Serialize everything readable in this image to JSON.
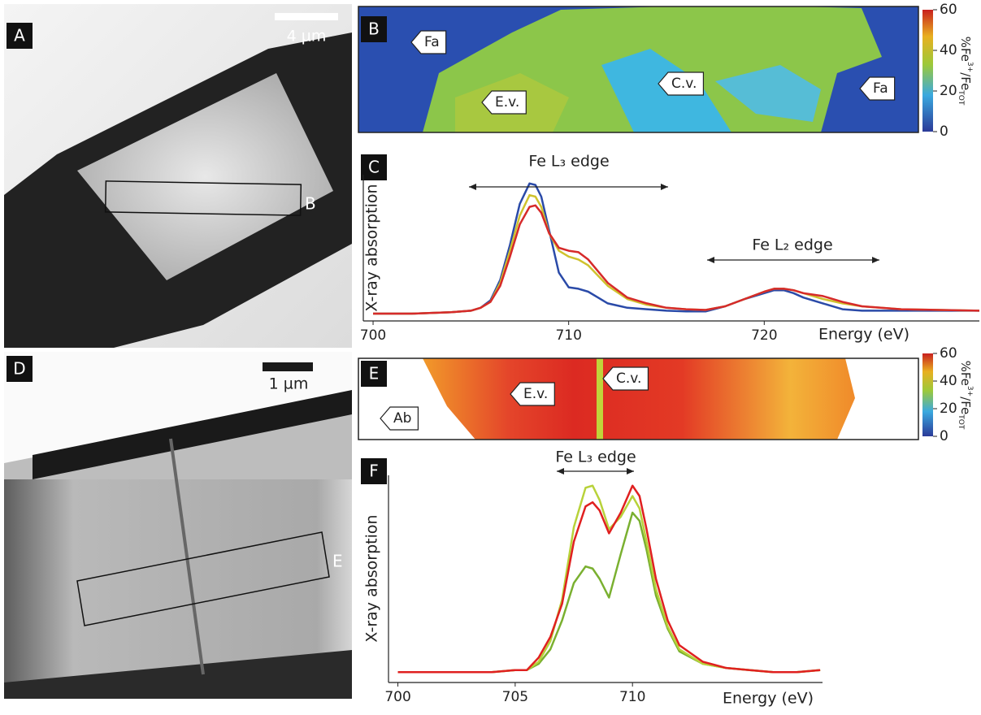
{
  "panels": {
    "labels": [
      "A",
      "B",
      "C",
      "D",
      "E",
      "F"
    ],
    "scale_bars": [
      "4 µm",
      "1 µm"
    ],
    "box_labels": [
      "B",
      "E"
    ],
    "map_b_regions": [
      "Fa",
      "E.v.",
      "C.v.",
      "Fa"
    ],
    "map_e_regions": [
      "E.v.",
      "C.v.",
      "Ab"
    ],
    "colorbar": {
      "range": [
        0,
        60
      ],
      "ticks": [
        0,
        20,
        40,
        60
      ],
      "label": {
        "main": "%Fe",
        "sup": "3+",
        "mid": "/Fe",
        "sub": "TOT"
      }
    }
  },
  "chart_data": [
    {
      "type": "line",
      "x_label": "Energy (eV)",
      "y_label": "X-ray absorption",
      "annotations": [
        "Fe L₃ edge",
        "Fe L₂ edge"
      ],
      "xlim": [
        699.5,
        731
      ],
      "xticks": [
        700,
        710,
        720
      ],
      "ylim": [
        0,
        1
      ],
      "x": [
        700,
        702,
        704,
        705,
        705.5,
        706,
        706.5,
        707,
        707.5,
        708,
        708.3,
        708.6,
        709,
        709.5,
        710,
        710.5,
        711,
        711.5,
        712,
        713,
        714,
        715,
        716,
        717,
        718,
        719,
        720,
        720.5,
        721,
        721.5,
        722,
        722.5,
        723,
        724,
        725,
        727,
        729,
        731
      ],
      "series": [
        {
          "color": "#2a4aa8",
          "values": [
            0.05,
            0.05,
            0.06,
            0.07,
            0.09,
            0.14,
            0.28,
            0.52,
            0.8,
            0.94,
            0.93,
            0.85,
            0.62,
            0.33,
            0.23,
            0.22,
            0.2,
            0.16,
            0.12,
            0.09,
            0.08,
            0.07,
            0.065,
            0.065,
            0.1,
            0.15,
            0.19,
            0.21,
            0.21,
            0.19,
            0.16,
            0.14,
            0.12,
            0.08,
            0.07,
            0.07,
            0.07,
            0.07
          ]
        },
        {
          "color": "#cfc22e",
          "values": [
            0.05,
            0.05,
            0.06,
            0.07,
            0.09,
            0.13,
            0.26,
            0.48,
            0.72,
            0.86,
            0.85,
            0.78,
            0.6,
            0.48,
            0.44,
            0.42,
            0.38,
            0.31,
            0.24,
            0.15,
            0.11,
            0.09,
            0.08,
            0.075,
            0.1,
            0.15,
            0.2,
            0.22,
            0.22,
            0.21,
            0.19,
            0.17,
            0.15,
            0.12,
            0.1,
            0.08,
            0.075,
            0.07
          ]
        },
        {
          "color": "#d62a2a",
          "values": [
            0.05,
            0.05,
            0.06,
            0.07,
            0.09,
            0.13,
            0.24,
            0.44,
            0.66,
            0.78,
            0.79,
            0.74,
            0.6,
            0.5,
            0.48,
            0.47,
            0.42,
            0.34,
            0.26,
            0.16,
            0.12,
            0.09,
            0.08,
            0.075,
            0.1,
            0.15,
            0.2,
            0.22,
            0.22,
            0.21,
            0.19,
            0.18,
            0.17,
            0.13,
            0.1,
            0.08,
            0.075,
            0.07
          ]
        }
      ]
    },
    {
      "type": "line",
      "x_label": "Energy (eV)",
      "y_label": "X-ray absorption",
      "annotations": [
        "Fe L₃ edge"
      ],
      "xlim": [
        699.6,
        718.1
      ],
      "xticks": [
        700,
        705,
        710
      ],
      "ylim": [
        0,
        1
      ],
      "x": [
        700,
        702,
        704,
        705,
        705.5,
        706,
        706.5,
        707,
        707.5,
        708,
        708.3,
        708.6,
        709,
        709.5,
        710,
        710.3,
        710.6,
        711,
        711.5,
        712,
        713,
        714,
        715,
        716,
        717,
        718
      ],
      "series": [
        {
          "color": "#7ab030",
          "values": [
            0.05,
            0.05,
            0.05,
            0.06,
            0.06,
            0.09,
            0.16,
            0.3,
            0.48,
            0.56,
            0.55,
            0.5,
            0.41,
            0.62,
            0.82,
            0.78,
            0.64,
            0.42,
            0.26,
            0.15,
            0.09,
            0.07,
            0.06,
            0.05,
            0.05,
            0.06
          ]
        },
        {
          "color": "#b8d23a",
          "values": [
            0.05,
            0.05,
            0.05,
            0.06,
            0.06,
            0.1,
            0.2,
            0.4,
            0.75,
            0.94,
            0.95,
            0.88,
            0.74,
            0.8,
            0.9,
            0.84,
            0.68,
            0.45,
            0.27,
            0.16,
            0.09,
            0.07,
            0.06,
            0.05,
            0.05,
            0.06
          ]
        },
        {
          "color": "#e02020",
          "values": [
            0.05,
            0.05,
            0.05,
            0.06,
            0.06,
            0.12,
            0.22,
            0.38,
            0.68,
            0.85,
            0.87,
            0.83,
            0.72,
            0.82,
            0.95,
            0.9,
            0.74,
            0.5,
            0.3,
            0.18,
            0.1,
            0.07,
            0.06,
            0.05,
            0.05,
            0.06
          ]
        }
      ]
    }
  ]
}
